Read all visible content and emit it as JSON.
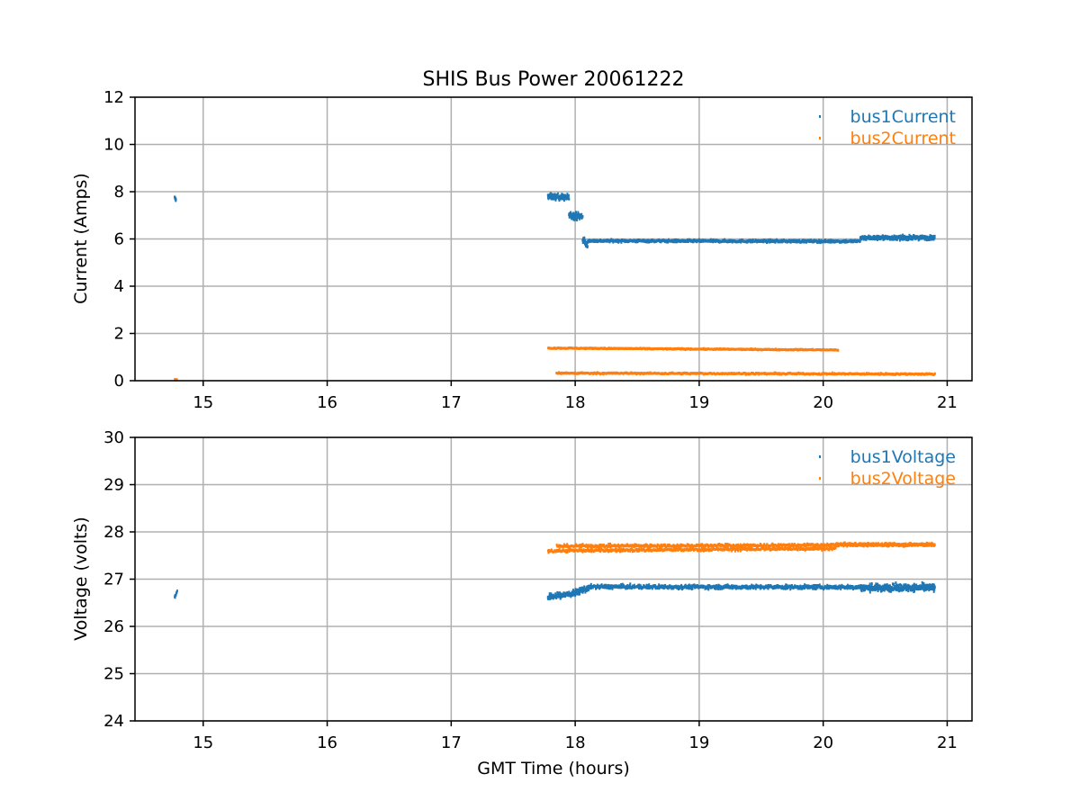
{
  "chart_data": [
    {
      "type": "scatter",
      "title": "SHIS Bus Power 20061222",
      "xlabel": "",
      "ylabel": "Current (Amps)",
      "xlim": [
        14.45,
        21.2
      ],
      "ylim": [
        0,
        12
      ],
      "xticks": [
        15,
        16,
        17,
        18,
        19,
        20,
        21
      ],
      "yticks": [
        0,
        2,
        4,
        6,
        8,
        10,
        12
      ],
      "grid": true,
      "legend": "top-right",
      "series": [
        {
          "name": "bus1Current",
          "color": "#1f77b4",
          "segments": [
            {
              "x": [
                14.77,
                14.78
              ],
              "y": [
                7.75,
                7.65
              ],
              "noise": 0.05,
              "density": 8
            },
            {
              "x": [
                17.78,
                17.95
              ],
              "y": [
                7.8,
                7.75
              ],
              "noise": 0.12,
              "density": 120
            },
            {
              "x": [
                17.95,
                18.06
              ],
              "y": [
                7.0,
                6.95
              ],
              "noise": 0.15,
              "density": 80
            },
            {
              "x": [
                18.06,
                18.1
              ],
              "y": [
                6.0,
                5.7
              ],
              "noise": 0.15,
              "density": 20
            },
            {
              "x": [
                18.1,
                20.3
              ],
              "y": [
                5.92,
                5.9
              ],
              "noise": 0.05,
              "density": 700
            },
            {
              "x": [
                20.3,
                20.9
              ],
              "y": [
                6.05,
                6.05
              ],
              "noise": 0.08,
              "density": 420
            }
          ]
        },
        {
          "name": "bus2Current",
          "color": "#ff7f0e",
          "segments": [
            {
              "x": [
                14.77,
                14.79
              ],
              "y": [
                0.05,
                0.05
              ],
              "noise": 0.02,
              "density": 6
            },
            {
              "x": [
                17.78,
                20.12
              ],
              "y": [
                1.38,
                1.3
              ],
              "noise": 0.02,
              "density": 420
            },
            {
              "x": [
                17.85,
                20.9
              ],
              "y": [
                0.32,
                0.28
              ],
              "noise": 0.03,
              "density": 520
            }
          ]
        }
      ]
    },
    {
      "type": "scatter",
      "title": "",
      "xlabel": "GMT Time (hours)",
      "ylabel": "Voltage (volts)",
      "xlim": [
        14.45,
        21.2
      ],
      "ylim": [
        24,
        30
      ],
      "xticks": [
        15,
        16,
        17,
        18,
        19,
        20,
        21
      ],
      "yticks": [
        24,
        25,
        26,
        27,
        28,
        29,
        30
      ],
      "grid": true,
      "legend": "top-right",
      "series": [
        {
          "name": "bus1Voltage",
          "color": "#1f77b4",
          "segments": [
            {
              "x": [
                14.77,
                14.79
              ],
              "y": [
                26.6,
                26.75
              ],
              "noise": 0.06,
              "density": 8
            },
            {
              "x": [
                17.78,
                18.0
              ],
              "y": [
                26.62,
                26.7
              ],
              "noise": 0.06,
              "density": 140
            },
            {
              "x": [
                18.0,
                18.12
              ],
              "y": [
                26.72,
                26.82
              ],
              "noise": 0.06,
              "density": 70
            },
            {
              "x": [
                18.12,
                20.3
              ],
              "y": [
                26.84,
                26.83
              ],
              "noise": 0.04,
              "density": 720
            },
            {
              "x": [
                20.3,
                20.9
              ],
              "y": [
                26.82,
                26.82
              ],
              "noise": 0.07,
              "density": 420
            }
          ]
        },
        {
          "name": "bus2Voltage",
          "color": "#ff7f0e",
          "segments": [
            {
              "x": [
                17.78,
                20.1
              ],
              "y": [
                27.6,
                27.65
              ],
              "noise": 0.03,
              "density": 500
            },
            {
              "x": [
                17.85,
                20.1
              ],
              "y": [
                27.7,
                27.72
              ],
              "noise": 0.03,
              "density": 500
            },
            {
              "x": [
                20.1,
                20.9
              ],
              "y": [
                27.73,
                27.73
              ],
              "noise": 0.03,
              "density": 420
            }
          ]
        }
      ]
    }
  ]
}
